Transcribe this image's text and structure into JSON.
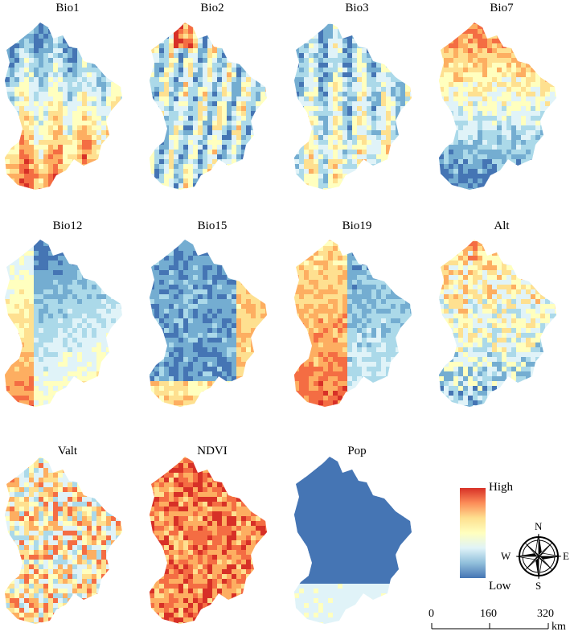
{
  "panels": [
    {
      "id": "bio1",
      "title": "Bio1"
    },
    {
      "id": "bio2",
      "title": "Bio2"
    },
    {
      "id": "bio3",
      "title": "Bio3"
    },
    {
      "id": "bio7",
      "title": "Bio7"
    },
    {
      "id": "bio12",
      "title": "Bio12"
    },
    {
      "id": "bio15",
      "title": "Bio15"
    },
    {
      "id": "bio19",
      "title": "Bio19"
    },
    {
      "id": "alt",
      "title": "Alt"
    },
    {
      "id": "valt",
      "title": "Valt"
    },
    {
      "id": "ndvi",
      "title": "NDVI"
    },
    {
      "id": "pop",
      "title": "Pop"
    }
  ],
  "legend": {
    "high_label": "High",
    "low_label": "Low",
    "colors": [
      "#d73027",
      "#fc8d59",
      "#fee090",
      "#ffffbf",
      "#e0f3f8",
      "#91bfdb",
      "#4575b4"
    ]
  },
  "compass": {
    "n": "N",
    "s": "S",
    "e": "E",
    "w": "W"
  },
  "scale_bar": {
    "ticks": [
      "0",
      "160",
      "320"
    ],
    "unit": "km"
  }
}
